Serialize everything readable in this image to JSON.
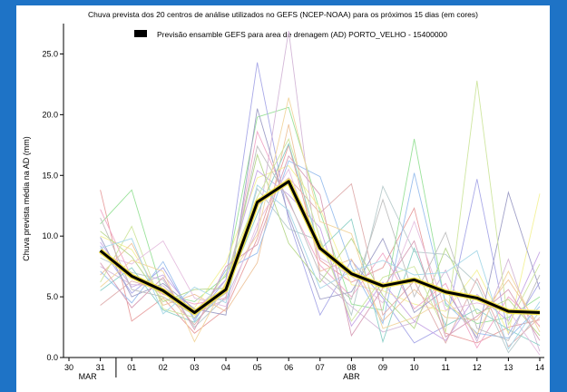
{
  "chart_data": {
    "type": "line",
    "title": "Chuva prevista dos 20 centros de análise utilizados no GEFS (NCEP-NOAA) para os próximos 15 dias (em cores)",
    "legend": {
      "label": "Previsão ensamble GEFS para area de drenagem (AD) PORTO_VELHO - 15400000",
      "placement": "top"
    },
    "ylabel": "Chuva prevista média na AD (mm)",
    "xlabel": "",
    "ylim": [
      0,
      27.5
    ],
    "yticks": [
      0.0,
      5.0,
      10.0,
      15.0,
      20.0,
      25.0
    ],
    "ytick_labels": [
      "0.0",
      "5.0",
      "10.0",
      "15.0",
      "20.0",
      "25.0"
    ],
    "xticks": [
      "30",
      "31",
      "01",
      "02",
      "03",
      "04",
      "05",
      "06",
      "07",
      "08",
      "09",
      "10",
      "11",
      "12",
      "13",
      "14"
    ],
    "month_labels": [
      {
        "text": "MAR",
        "at": "31"
      },
      {
        "text": "ABR",
        "at": "08"
      }
    ],
    "x": [
      "31",
      "01",
      "02",
      "03",
      "04",
      "05",
      "06",
      "07",
      "08",
      "09",
      "10",
      "11",
      "12",
      "13",
      "14"
    ],
    "ensemble_mean": {
      "values": [
        8.8,
        6.7,
        5.5,
        3.7,
        5.6,
        12.8,
        14.5,
        9.0,
        6.9,
        5.9,
        6.4,
        5.4,
        4.9,
        3.8,
        3.7
      ],
      "color": "#000000",
      "highlight": "#f2e14a"
    },
    "members": [
      {
        "color": "#e8a0a0",
        "values": [
          13.8,
          3.0,
          4.9,
          2.0,
          4.0,
          9.8,
          17.5,
          8.0,
          6.2,
          7.4,
          12.3,
          2.0,
          1.2,
          2.5,
          3.1
        ]
      },
      {
        "color": "#9be29b",
        "values": [
          11.0,
          13.8,
          5.2,
          4.6,
          6.7,
          19.8,
          20.6,
          12.0,
          4.4,
          3.9,
          18.0,
          4.3,
          2.8,
          3.3,
          5.0
        ]
      },
      {
        "color": "#a9a9e8",
        "values": [
          9.2,
          5.3,
          7.4,
          3.2,
          6.4,
          24.3,
          11.3,
          3.5,
          8.0,
          4.9,
          1.2,
          2.6,
          14.7,
          1.9,
          6.2
        ]
      },
      {
        "color": "#f4f29a",
        "values": [
          10.0,
          8.9,
          4.8,
          4.1,
          7.8,
          14.8,
          15.8,
          12.3,
          6.0,
          5.5,
          4.4,
          3.8,
          7.2,
          2.0,
          13.5
        ]
      },
      {
        "color": "#d4b8d8",
        "values": [
          7.5,
          6.0,
          5.9,
          3.6,
          4.8,
          10.5,
          26.9,
          6.5,
          4.2,
          2.1,
          2.9,
          7.2,
          1.3,
          8.1,
          0.5
        ]
      },
      {
        "color": "#b8cbcc",
        "values": [
          8.2,
          7.0,
          6.4,
          2.5,
          5.0,
          13.9,
          10.6,
          9.6,
          3.5,
          14.1,
          8.7,
          8.5,
          6.1,
          0.4,
          3.8
        ]
      },
      {
        "color": "#eec49c",
        "values": [
          6.8,
          9.4,
          4.3,
          5.2,
          3.8,
          7.8,
          19.2,
          7.1,
          8.1,
          3.0,
          5.6,
          3.3,
          3.1,
          6.4,
          2.5
        ]
      },
      {
        "color": "#c8a8e6",
        "values": [
          9.5,
          5.8,
          6.8,
          3.8,
          6.4,
          15.4,
          13.4,
          10.7,
          2.6,
          6.2,
          3.0,
          1.4,
          5.2,
          3.0,
          8.7
        ]
      },
      {
        "color": "#8ed0c8",
        "values": [
          5.5,
          7.4,
          3.9,
          2.9,
          5.5,
          11.8,
          17.6,
          8.9,
          11.4,
          1.3,
          9.0,
          2.6,
          4.0,
          2.3,
          1.0
        ]
      },
      {
        "color": "#f0a8c8",
        "values": [
          12.2,
          6.6,
          5.2,
          4.4,
          4.9,
          18.6,
          12.8,
          7.6,
          5.0,
          8.6,
          4.0,
          6.1,
          0.8,
          5.0,
          2.6
        ]
      },
      {
        "color": "#9cc0ee",
        "values": [
          7.1,
          4.5,
          7.9,
          3.0,
          7.2,
          8.6,
          16.2,
          14.9,
          7.5,
          2.8,
          15.2,
          4.5,
          2.0,
          1.6,
          4.2
        ]
      },
      {
        "color": "#b8d88e",
        "values": [
          10.4,
          8.3,
          4.6,
          5.6,
          5.7,
          16.7,
          9.4,
          6.2,
          9.8,
          5.1,
          2.4,
          9.0,
          3.6,
          4.8,
          1.8
        ]
      },
      {
        "color": "#e0b0b0",
        "values": [
          4.3,
          6.3,
          5.5,
          2.7,
          6.0,
          12.5,
          14.8,
          11.9,
          14.3,
          3.5,
          6.3,
          1.2,
          6.5,
          0.9,
          3.3
        ]
      },
      {
        "color": "#a0a0c8",
        "values": [
          9.9,
          5.0,
          6.1,
          4.0,
          3.5,
          20.5,
          11.7,
          4.8,
          5.4,
          9.8,
          3.7,
          5.6,
          1.6,
          13.6,
          5.6
        ]
      },
      {
        "color": "#cfe6a0",
        "values": [
          6.2,
          10.8,
          4.0,
          3.3,
          6.9,
          13.2,
          18.0,
          9.8,
          3.0,
          6.6,
          7.5,
          2.1,
          22.8,
          2.7,
          7.7
        ]
      },
      {
        "color": "#e6c0e0",
        "values": [
          8.5,
          7.7,
          9.6,
          4.9,
          4.2,
          11.0,
          15.5,
          8.2,
          6.7,
          4.5,
          11.2,
          3.9,
          4.5,
          3.9,
          0.2
        ]
      },
      {
        "color": "#c0c0c0",
        "values": [
          11.5,
          5.6,
          5.0,
          3.5,
          5.3,
          17.4,
          13.0,
          6.9,
          4.8,
          13.0,
          5.0,
          10.3,
          2.4,
          1.4,
          6.8
        ]
      },
      {
        "color": "#f2d6a0",
        "values": [
          5.8,
          8.0,
          7.1,
          1.3,
          6.2,
          10.1,
          21.4,
          11.2,
          10.2,
          2.4,
          3.3,
          4.8,
          1.9,
          7.1,
          2.1
        ]
      },
      {
        "color": "#a8d8e8",
        "values": [
          9.0,
          9.8,
          3.6,
          5.8,
          4.5,
          14.2,
          12.1,
          5.7,
          7.1,
          8.0,
          6.8,
          7.0,
          8.8,
          0.7,
          4.6
        ]
      },
      {
        "color": "#d8a0b8",
        "values": [
          7.8,
          4.1,
          6.6,
          2.3,
          7.5,
          9.3,
          16.6,
          13.4,
          1.8,
          5.7,
          9.6,
          1.7,
          3.4,
          5.6,
          1.4
        ]
      }
    ]
  }
}
